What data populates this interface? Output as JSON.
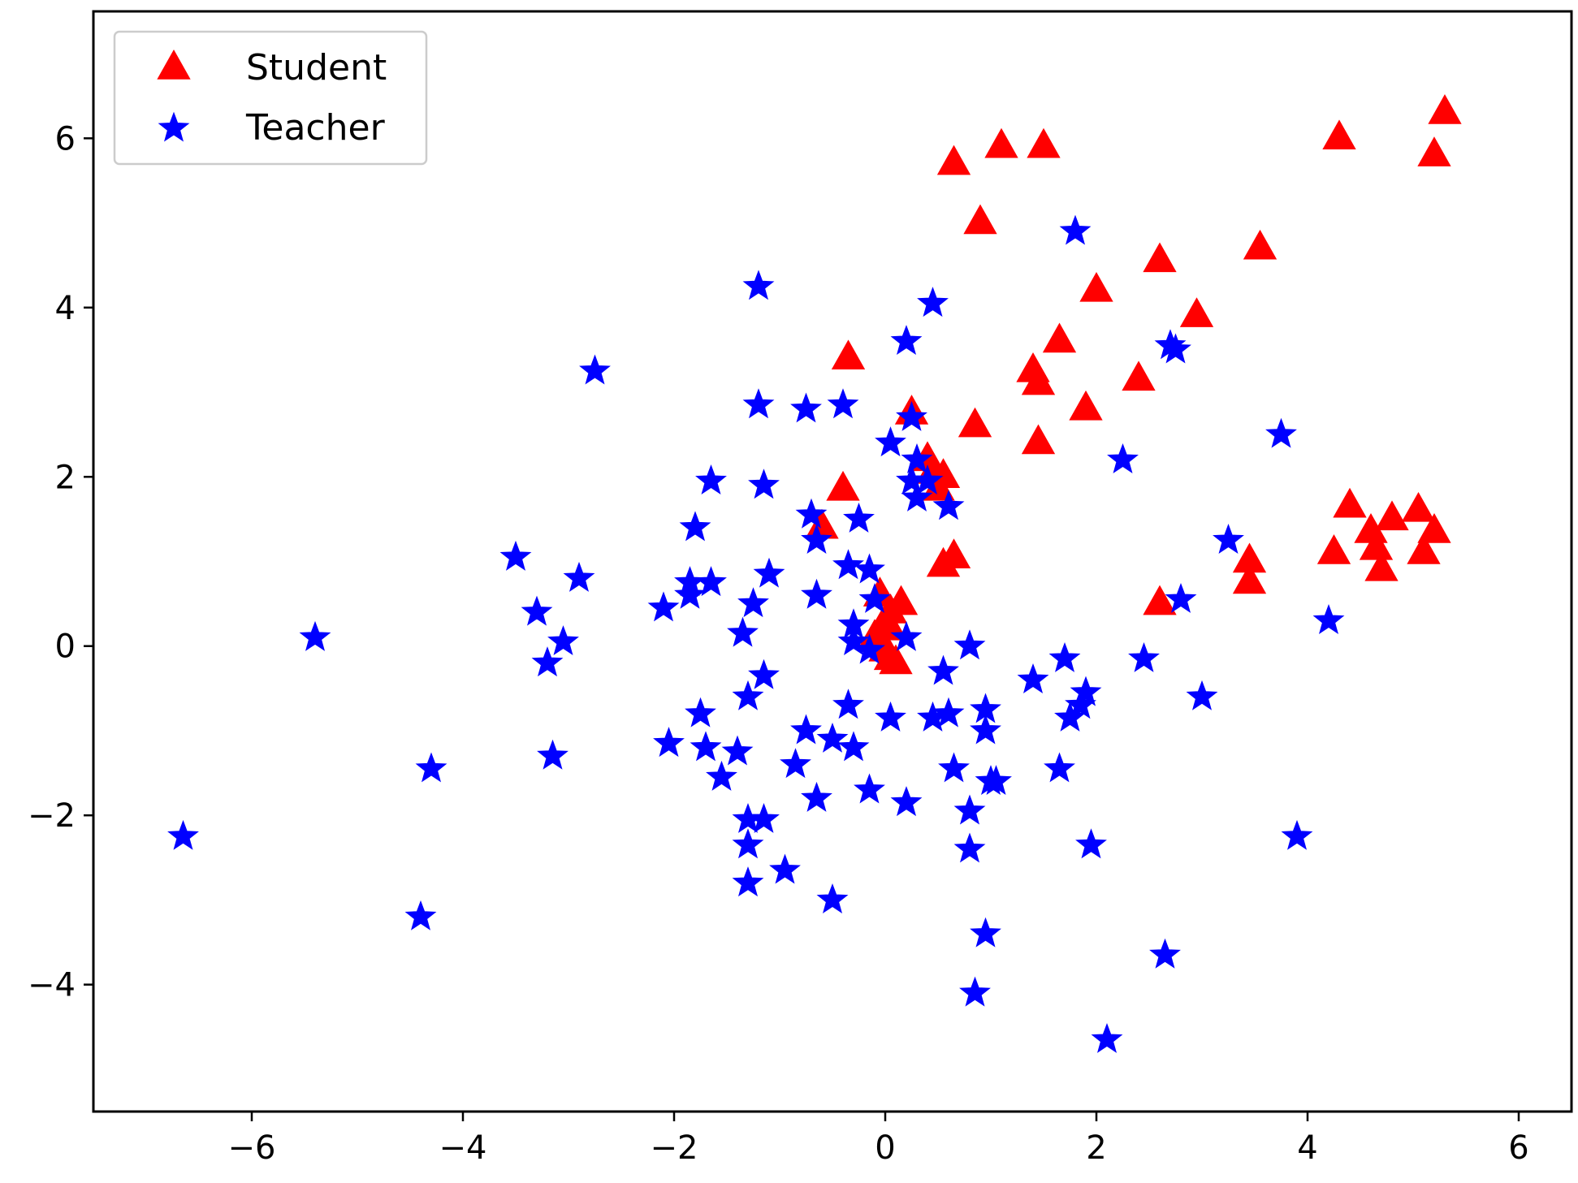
{
  "chart_data": {
    "type": "scatter",
    "title": "",
    "xlabel": "",
    "ylabel": "",
    "xlim": [
      -7.5,
      6.5
    ],
    "ylim": [
      -5.5,
      7.5
    ],
    "x_ticks": [
      -6,
      -4,
      -2,
      0,
      2,
      4,
      6
    ],
    "y_ticks": [
      -4,
      -2,
      0,
      2,
      4,
      6
    ],
    "x_tick_labels": [
      "−6",
      "−4",
      "−2",
      "0",
      "2",
      "4",
      "6"
    ],
    "y_tick_labels": [
      "−4",
      "−2",
      "0",
      "2",
      "4",
      "6"
    ],
    "grid": false,
    "legend_position": "top-left",
    "series": [
      {
        "name": "Student",
        "marker": "triangle",
        "color": "#ff0000",
        "points": [
          [
            0.65,
            5.7
          ],
          [
            1.1,
            5.9
          ],
          [
            1.5,
            5.9
          ],
          [
            0.9,
            5.0
          ],
          [
            4.3,
            6.0
          ],
          [
            5.3,
            6.3
          ],
          [
            5.2,
            5.8
          ],
          [
            3.55,
            4.7
          ],
          [
            2.6,
            4.55
          ],
          [
            2.0,
            4.2
          ],
          [
            2.95,
            3.9
          ],
          [
            -0.35,
            3.4
          ],
          [
            1.65,
            3.6
          ],
          [
            1.4,
            3.25
          ],
          [
            1.45,
            3.1
          ],
          [
            2.4,
            3.15
          ],
          [
            1.9,
            2.8
          ],
          [
            0.85,
            2.6
          ],
          [
            0.25,
            2.75
          ],
          [
            1.45,
            2.4
          ],
          [
            -0.4,
            1.85
          ],
          [
            0.4,
            2.2
          ],
          [
            0.45,
            2.05
          ],
          [
            0.55,
            2.0
          ],
          [
            0.5,
            1.85
          ],
          [
            -0.6,
            1.4
          ],
          [
            0.55,
            0.95
          ],
          [
            0.65,
            1.05
          ],
          [
            0.15,
            0.5
          ],
          [
            -0.05,
            0.6
          ],
          [
            0.05,
            0.4
          ],
          [
            0.0,
            0.25
          ],
          [
            0.05,
            0.2
          ],
          [
            -0.05,
            0.05
          ],
          [
            0.0,
            -0.05
          ],
          [
            0.05,
            -0.15
          ],
          [
            0.1,
            -0.2
          ],
          [
            -0.1,
            0.1
          ],
          [
            2.6,
            0.5
          ],
          [
            3.45,
            1.0
          ],
          [
            3.45,
            0.75
          ],
          [
            4.4,
            1.65
          ],
          [
            4.25,
            1.1
          ],
          [
            4.6,
            1.35
          ],
          [
            4.65,
            1.15
          ],
          [
            4.7,
            0.9
          ],
          [
            4.8,
            1.5
          ],
          [
            5.05,
            1.6
          ],
          [
            5.1,
            1.1
          ],
          [
            5.2,
            1.35
          ]
        ]
      },
      {
        "name": "Teacher",
        "marker": "star",
        "color": "#0000ff",
        "points": [
          [
            1.8,
            4.9
          ],
          [
            -1.2,
            4.25
          ],
          [
            0.45,
            4.05
          ],
          [
            0.2,
            3.6
          ],
          [
            -2.75,
            3.25
          ],
          [
            2.7,
            3.55
          ],
          [
            2.75,
            3.5
          ],
          [
            -1.2,
            2.85
          ],
          [
            -0.75,
            2.8
          ],
          [
            -0.4,
            2.85
          ],
          [
            0.25,
            2.7
          ],
          [
            0.05,
            2.4
          ],
          [
            0.3,
            2.2
          ],
          [
            3.75,
            2.5
          ],
          [
            2.25,
            2.2
          ],
          [
            0.25,
            1.95
          ],
          [
            0.4,
            1.95
          ],
          [
            0.3,
            1.75
          ],
          [
            -1.65,
            1.95
          ],
          [
            -1.15,
            1.9
          ],
          [
            -0.7,
            1.55
          ],
          [
            0.6,
            1.65
          ],
          [
            -0.25,
            1.5
          ],
          [
            -1.8,
            1.4
          ],
          [
            -0.65,
            1.25
          ],
          [
            3.25,
            1.25
          ],
          [
            -3.5,
            1.05
          ],
          [
            -0.35,
            0.95
          ],
          [
            -0.15,
            0.9
          ],
          [
            -1.1,
            0.85
          ],
          [
            -2.9,
            0.8
          ],
          [
            -1.85,
            0.75
          ],
          [
            -1.65,
            0.75
          ],
          [
            -1.85,
            0.6
          ],
          [
            -0.65,
            0.6
          ],
          [
            -0.1,
            0.55
          ],
          [
            -1.25,
            0.5
          ],
          [
            -2.1,
            0.45
          ],
          [
            2.8,
            0.55
          ],
          [
            -3.3,
            0.4
          ],
          [
            4.2,
            0.3
          ],
          [
            -0.3,
            0.25
          ],
          [
            -1.35,
            0.15
          ],
          [
            -0.3,
            0.05
          ],
          [
            0.2,
            0.1
          ],
          [
            -5.4,
            0.1
          ],
          [
            -3.05,
            0.05
          ],
          [
            -0.15,
            -0.05
          ],
          [
            0.8,
            0.0
          ],
          [
            2.45,
            -0.15
          ],
          [
            1.7,
            -0.15
          ],
          [
            -3.2,
            -0.2
          ],
          [
            0.55,
            -0.3
          ],
          [
            -1.15,
            -0.35
          ],
          [
            1.4,
            -0.4
          ],
          [
            3.0,
            -0.6
          ],
          [
            1.9,
            -0.55
          ],
          [
            -1.3,
            -0.6
          ],
          [
            -0.35,
            -0.7
          ],
          [
            1.85,
            -0.7
          ],
          [
            0.95,
            -0.75
          ],
          [
            0.6,
            -0.8
          ],
          [
            0.45,
            -0.85
          ],
          [
            1.75,
            -0.85
          ],
          [
            0.05,
            -0.85
          ],
          [
            -1.75,
            -0.8
          ],
          [
            -0.75,
            -1.0
          ],
          [
            0.95,
            -1.0
          ],
          [
            -0.5,
            -1.1
          ],
          [
            -2.05,
            -1.15
          ],
          [
            -1.7,
            -1.2
          ],
          [
            -0.3,
            -1.2
          ],
          [
            -1.4,
            -1.25
          ],
          [
            -3.15,
            -1.3
          ],
          [
            -0.85,
            -1.4
          ],
          [
            0.65,
            -1.45
          ],
          [
            -4.3,
            -1.45
          ],
          [
            1.65,
            -1.45
          ],
          [
            -1.55,
            -1.55
          ],
          [
            1.0,
            -1.6
          ],
          [
            1.05,
            -1.6
          ],
          [
            -0.15,
            -1.7
          ],
          [
            -0.65,
            -1.8
          ],
          [
            0.2,
            -1.85
          ],
          [
            0.8,
            -1.95
          ],
          [
            -1.15,
            -2.05
          ],
          [
            -1.3,
            -2.05
          ],
          [
            -6.65,
            -2.25
          ],
          [
            3.9,
            -2.25
          ],
          [
            -1.3,
            -2.35
          ],
          [
            1.95,
            -2.35
          ],
          [
            0.8,
            -2.4
          ],
          [
            -0.95,
            -2.65
          ],
          [
            -1.3,
            -2.8
          ],
          [
            -0.5,
            -3.0
          ],
          [
            -4.4,
            -3.2
          ],
          [
            0.95,
            -3.4
          ],
          [
            2.65,
            -3.65
          ],
          [
            0.85,
            -4.1
          ],
          [
            2.1,
            -4.65
          ]
        ]
      }
    ]
  },
  "legend": {
    "items": [
      {
        "label": "Student",
        "marker": "triangle",
        "color": "#ff0000"
      },
      {
        "label": "Teacher",
        "marker": "star",
        "color": "#0000ff"
      }
    ]
  }
}
